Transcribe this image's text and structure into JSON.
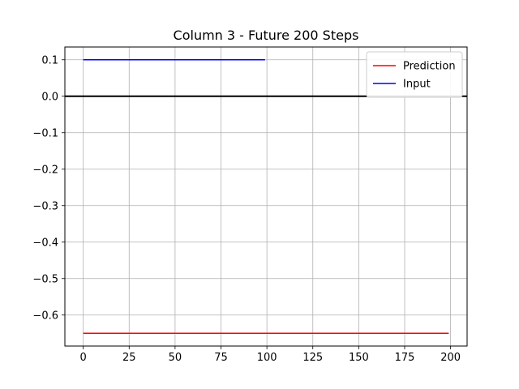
{
  "chart_data": {
    "type": "line",
    "title": "Column 3 - Future 200 Steps",
    "xlabel": "",
    "ylabel": "",
    "xlim": [
      -10,
      209
    ],
    "ylim": [
      -0.685,
      0.135
    ],
    "xticks": [
      0,
      25,
      50,
      75,
      100,
      125,
      150,
      175,
      200
    ],
    "xtick_labels": [
      "0",
      "25",
      "50",
      "75",
      "100",
      "125",
      "150",
      "175",
      "200"
    ],
    "yticks": [
      0.1,
      0.0,
      -0.1,
      -0.2,
      -0.3,
      -0.4,
      -0.5,
      -0.6
    ],
    "ytick_labels": [
      "0.1",
      "0.0",
      "−0.1",
      "−0.2",
      "−0.3",
      "−0.4",
      "−0.5",
      "−0.6"
    ],
    "grid": true,
    "legend_position": "top-right",
    "reference_line": {
      "y": 0.0,
      "color": "#000000"
    },
    "series": [
      {
        "name": "Prediction",
        "color": "#ff0000",
        "x": [
          0,
          199
        ],
        "y": [
          -0.65,
          -0.65
        ]
      },
      {
        "name": "Input",
        "color": "#0000ff",
        "x": [
          0,
          99
        ],
        "y": [
          0.1,
          0.1
        ]
      }
    ]
  }
}
